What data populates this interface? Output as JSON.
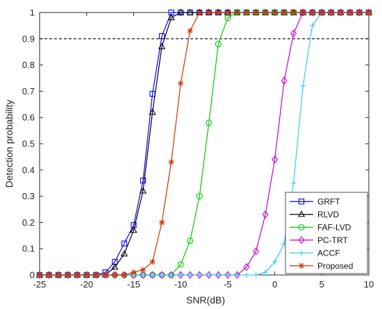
{
  "chart_data": {
    "type": "line",
    "xlabel": "SNR(dB)",
    "ylabel": "Detection probability",
    "xlim": [
      -25,
      10
    ],
    "ylim": [
      0,
      1
    ],
    "xticks": [
      "-25",
      "-20",
      "-15",
      "-10",
      "-5",
      "0",
      "5",
      "10"
    ],
    "yticks": [
      "0",
      "0.1",
      "0.2",
      "0.3",
      "0.4",
      "0.5",
      "0.6",
      "0.7",
      "0.8",
      "0.9",
      "1"
    ],
    "grid": false,
    "legend_position": "bottom-right",
    "reference_line": {
      "y": 0.9,
      "style": "dashed",
      "color": "#000000"
    },
    "x": [
      -25,
      -24,
      -23,
      -22,
      -21,
      -20,
      -19,
      -18,
      -17,
      -16,
      -15,
      -14,
      -13,
      -12,
      -11,
      -10,
      -9,
      -8,
      -7,
      -6,
      -5,
      -4,
      -3,
      -2,
      -1,
      0,
      1,
      2,
      3,
      4,
      5,
      6,
      7,
      8,
      9,
      10
    ],
    "series": [
      {
        "name": "GRFT",
        "color": "#0000ff",
        "marker": "square",
        "values": [
          0,
          0,
          0,
          0,
          0,
          0,
          0,
          0.01,
          0.05,
          0.12,
          0.19,
          0.36,
          0.69,
          0.91,
          1,
          1,
          1,
          1,
          1,
          1,
          1,
          1,
          1,
          1,
          1,
          1,
          1,
          1,
          1,
          1,
          1,
          1,
          1,
          1,
          1,
          1
        ]
      },
      {
        "name": "RLVD",
        "color": "#000000",
        "marker": "triangle",
        "values": [
          0,
          0,
          0,
          0,
          0,
          0,
          0,
          0,
          0.03,
          0.08,
          0.17,
          0.32,
          0.62,
          0.87,
          0.98,
          1,
          1,
          1,
          1,
          1,
          1,
          1,
          1,
          1,
          1,
          1,
          1,
          1,
          1,
          1,
          1,
          1,
          1,
          1,
          1,
          1
        ]
      },
      {
        "name": "FAF-LVD",
        "color": "#00cc00",
        "marker": "circle",
        "values": [
          0,
          0,
          0,
          0,
          0,
          0,
          0,
          0,
          0,
          0,
          0,
          0,
          0,
          0,
          0,
          0.04,
          0.13,
          0.3,
          0.58,
          0.88,
          0.98,
          1,
          1,
          1,
          1,
          1,
          1,
          1,
          1,
          1,
          1,
          1,
          1,
          1,
          1,
          1
        ]
      },
      {
        "name": "PC-TRT",
        "color": "#cc00cc",
        "marker": "diamond",
        "values": [
          0,
          0,
          0,
          0,
          0,
          0,
          0,
          0,
          0,
          0,
          0,
          0,
          0,
          0,
          0,
          0,
          0,
          0,
          0,
          0,
          0,
          0,
          0.03,
          0.09,
          0.23,
          0.44,
          0.74,
          0.92,
          1,
          1,
          1,
          1,
          1,
          1,
          1,
          1
        ]
      },
      {
        "name": "ACCF",
        "color": "#33ccee",
        "marker": "plus",
        "values": [
          0,
          0,
          0,
          0,
          0,
          0,
          0,
          0,
          0,
          0,
          0,
          0,
          0,
          0,
          0,
          0,
          0,
          0,
          0,
          0,
          0,
          0,
          0,
          0,
          0.01,
          0.05,
          0.12,
          0.35,
          0.72,
          0.95,
          1,
          1,
          1,
          1,
          1,
          1
        ]
      },
      {
        "name": "Proposed",
        "color": "#cc3300",
        "marker": "asterisk",
        "values": [
          0,
          0,
          0,
          0,
          0,
          0,
          0,
          0,
          0,
          0,
          0.01,
          0.02,
          0.05,
          0.2,
          0.43,
          0.73,
          0.93,
          1,
          1,
          1,
          1,
          1,
          1,
          1,
          1,
          1,
          1,
          1,
          1,
          1,
          1,
          1,
          1,
          1,
          1,
          1
        ]
      }
    ]
  }
}
